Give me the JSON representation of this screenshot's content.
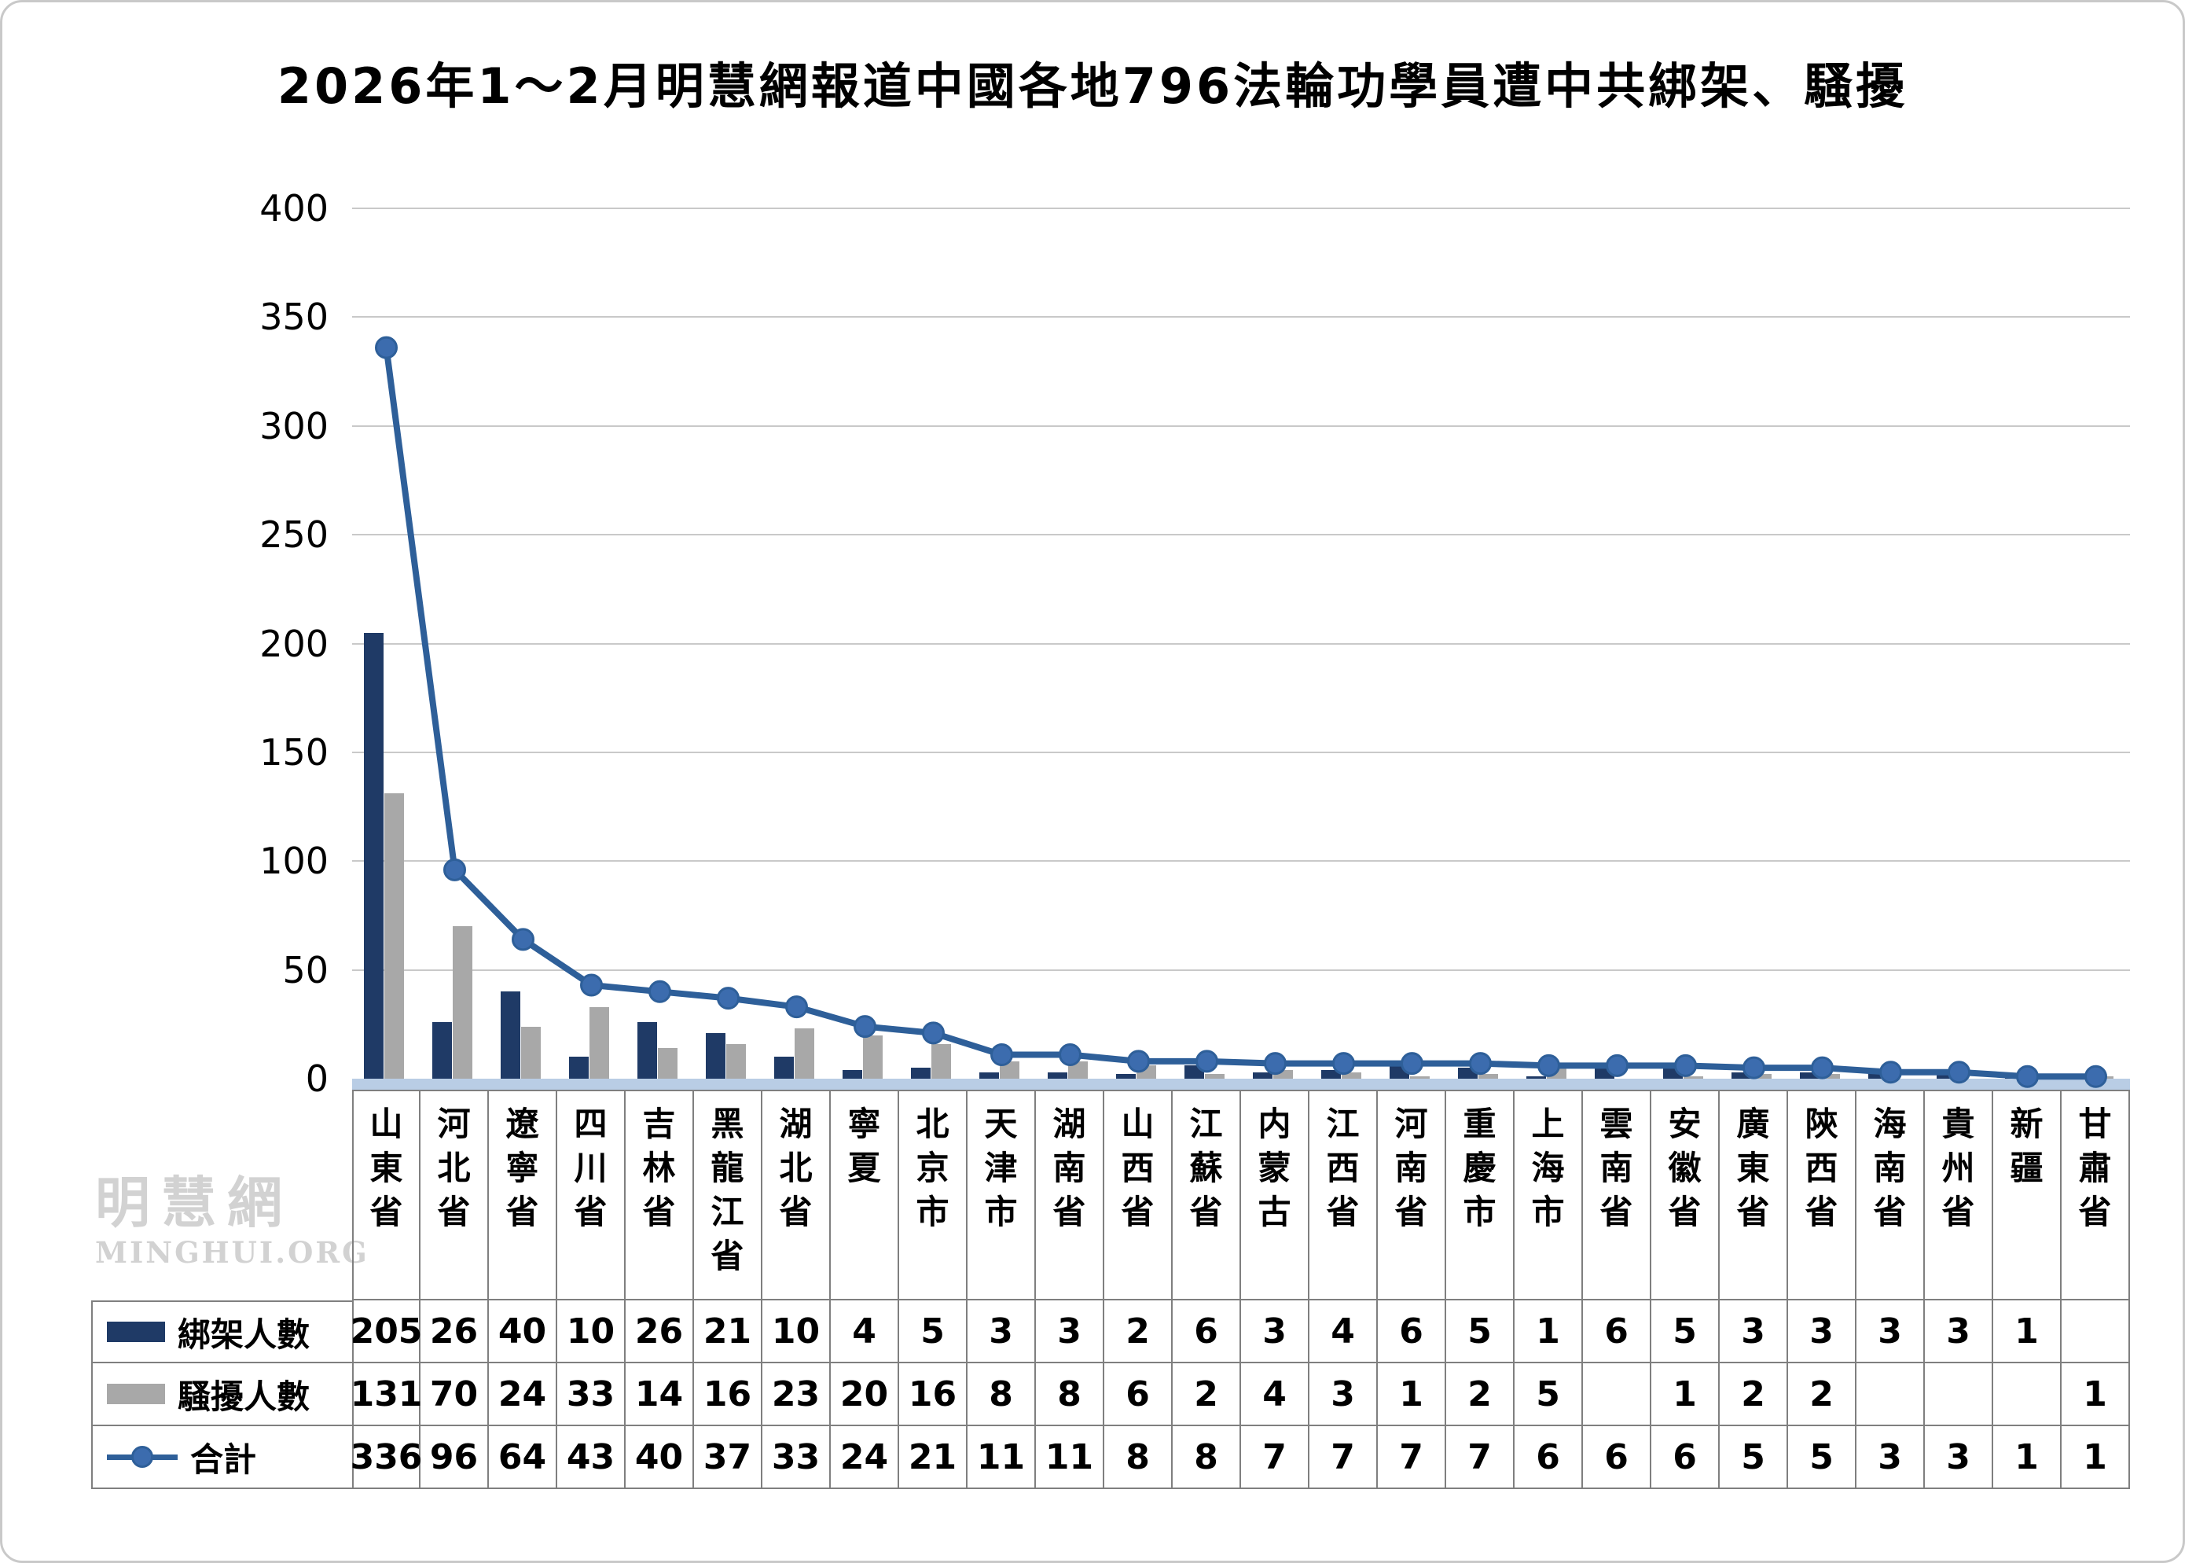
{
  "title": "2026年1～2月明慧網報道中國各地796法輪功學員遭中共綁架、騷擾",
  "watermark": {
    "cn": "明慧網",
    "en": "MINGHUI.ORG"
  },
  "chart_data": {
    "type": "bar+line",
    "title": "2026年1～2月明慧網報道中國各地796法輪功學員遭中共綁架、騷擾",
    "categories": [
      "山東省",
      "河北省",
      "遼寧省",
      "四川省",
      "吉林省",
      "黑龍江省",
      "湖北省",
      "寧夏",
      "北京市",
      "天津市",
      "湖南省",
      "山西省",
      "江蘇省",
      "内蒙古",
      "江西省",
      "河南省",
      "重慶市",
      "上海市",
      "雲南省",
      "安徽省",
      "廣東省",
      "陝西省",
      "海南省",
      "貴州省",
      "新疆",
      "甘肅省"
    ],
    "series": [
      {
        "key": "kidnapped",
        "name": "綁架人數",
        "type": "bar",
        "color": "#1f3a66",
        "values": [
          205,
          26,
          40,
          10,
          26,
          21,
          10,
          4,
          5,
          3,
          3,
          2,
          6,
          3,
          4,
          6,
          5,
          1,
          6,
          5,
          3,
          3,
          3,
          3,
          1,
          null
        ]
      },
      {
        "key": "harassed",
        "name": "騷擾人數",
        "type": "bar",
        "color": "#a8a8a8",
        "values": [
          131,
          70,
          24,
          33,
          14,
          16,
          23,
          20,
          16,
          8,
          8,
          6,
          2,
          4,
          3,
          1,
          2,
          5,
          null,
          1,
          2,
          2,
          null,
          null,
          null,
          1
        ]
      },
      {
        "key": "total",
        "name": "合計",
        "type": "line",
        "color": "#2e5f99",
        "marker_color": "#3c6cae",
        "values": [
          336,
          96,
          64,
          43,
          40,
          37,
          33,
          24,
          21,
          11,
          11,
          8,
          8,
          7,
          7,
          7,
          7,
          6,
          6,
          6,
          5,
          5,
          3,
          3,
          1,
          1
        ]
      }
    ],
    "y_axis": {
      "min": 0,
      "max": 400,
      "step": 50
    },
    "ylim": [
      0,
      400
    ],
    "grid": true,
    "axis_band_color": "#b9cde5",
    "grid_color": "#c9c9c9",
    "table_border_color": "#7f7f7f",
    "legend_position": "table-left",
    "total_reported": 796
  }
}
